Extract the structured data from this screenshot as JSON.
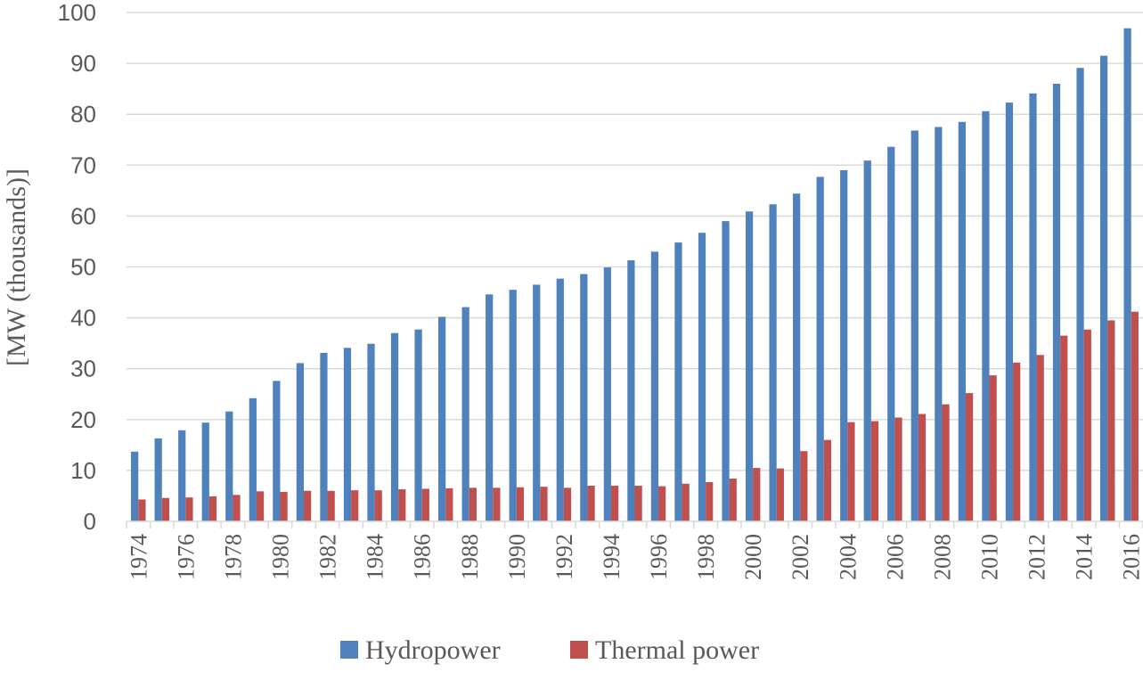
{
  "chart_data": {
    "type": "bar",
    "ylabel": "[MW (thousands)]",
    "xlabel": "",
    "ylim": [
      0,
      100
    ],
    "y_ticks": [
      0,
      10,
      20,
      30,
      40,
      50,
      60,
      70,
      80,
      90,
      100
    ],
    "grid": true,
    "legend_position": "bottom",
    "categories": [
      "1974",
      "1975",
      "1976",
      "1977",
      "1978",
      "1979",
      "1980",
      "1981",
      "1982",
      "1983",
      "1984",
      "1985",
      "1986",
      "1987",
      "1988",
      "1989",
      "1990",
      "1991",
      "1992",
      "1993",
      "1994",
      "1995",
      "1996",
      "1997",
      "1998",
      "1999",
      "2000",
      "2001",
      "2002",
      "2003",
      "2004",
      "2005",
      "2006",
      "2007",
      "2008",
      "2009",
      "2010",
      "2011",
      "2012",
      "2013",
      "2014",
      "2015",
      "2016"
    ],
    "x_tick_labels": [
      "1974",
      "",
      "1976",
      "",
      "1978",
      "",
      "1980",
      "",
      "1982",
      "",
      "1984",
      "",
      "1986",
      "",
      "1988",
      "",
      "1990",
      "",
      "1992",
      "",
      "1994",
      "",
      "1996",
      "",
      "1998",
      "",
      "2000",
      "",
      "2002",
      "",
      "2004",
      "",
      "2006",
      "",
      "2008",
      "",
      "2010",
      "",
      "2012",
      "",
      "2014",
      "",
      "2016"
    ],
    "series": [
      {
        "name": "Hydropower",
        "color": "#4f81bd",
        "values": [
          13.7,
          16.3,
          17.9,
          19.4,
          21.6,
          24.2,
          27.6,
          31.1,
          33.1,
          34.1,
          34.9,
          37.0,
          37.7,
          40.2,
          42.1,
          44.6,
          45.5,
          46.5,
          47.7,
          48.6,
          49.9,
          51.3,
          53.0,
          54.8,
          56.7,
          59.0,
          60.9,
          62.3,
          64.4,
          67.7,
          69.0,
          70.9,
          73.6,
          76.8,
          77.5,
          78.5,
          80.6,
          82.3,
          84.1,
          86.0,
          89.1,
          91.5,
          96.9
        ]
      },
      {
        "name": "Thermal power",
        "color": "#c0504d",
        "values": [
          4.3,
          4.6,
          4.7,
          4.9,
          5.2,
          5.9,
          5.8,
          6.0,
          6.0,
          6.1,
          6.1,
          6.3,
          6.4,
          6.5,
          6.6,
          6.6,
          6.7,
          6.8,
          6.6,
          7.0,
          7.0,
          7.0,
          6.9,
          7.4,
          7.7,
          8.4,
          10.5,
          10.4,
          13.8,
          16.0,
          19.5,
          19.7,
          20.4,
          21.1,
          23.0,
          25.2,
          28.7,
          31.2,
          32.7,
          36.5,
          37.7,
          39.5,
          41.2
        ]
      }
    ]
  }
}
